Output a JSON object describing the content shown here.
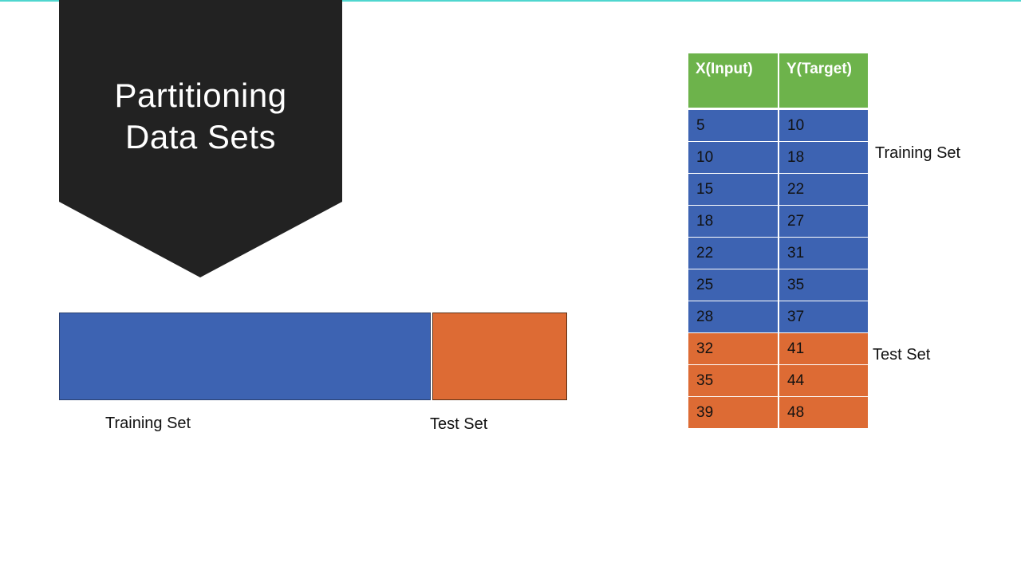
{
  "title": {
    "line1": "Partitioning",
    "line2": "Data Sets"
  },
  "partition_bar": {
    "training_label": "Training Set",
    "test_label": "Test Set",
    "training_fraction": 0.7
  },
  "table": {
    "headers": [
      "X(Input)",
      "Y(Target)"
    ],
    "rows": [
      {
        "x": "5",
        "y": "10",
        "set": "training"
      },
      {
        "x": "10",
        "y": "18",
        "set": "training"
      },
      {
        "x": "15",
        "y": "22",
        "set": "training"
      },
      {
        "x": "18",
        "y": "27",
        "set": "training"
      },
      {
        "x": "22",
        "y": "31",
        "set": "training"
      },
      {
        "x": "25",
        "y": "35",
        "set": "training"
      },
      {
        "x": "28",
        "y": "37",
        "set": "training"
      },
      {
        "x": "32",
        "y": "41",
        "set": "test"
      },
      {
        "x": "35",
        "y": "44",
        "set": "test"
      },
      {
        "x": "39",
        "y": "48",
        "set": "test"
      }
    ],
    "training_label": "Training Set",
    "test_label": "Test Set"
  },
  "colors": {
    "accent_line": "#4fd6cf",
    "banner": "#222222",
    "header": "#6db34b",
    "training": "#3d63b2",
    "test": "#dd6b34"
  }
}
